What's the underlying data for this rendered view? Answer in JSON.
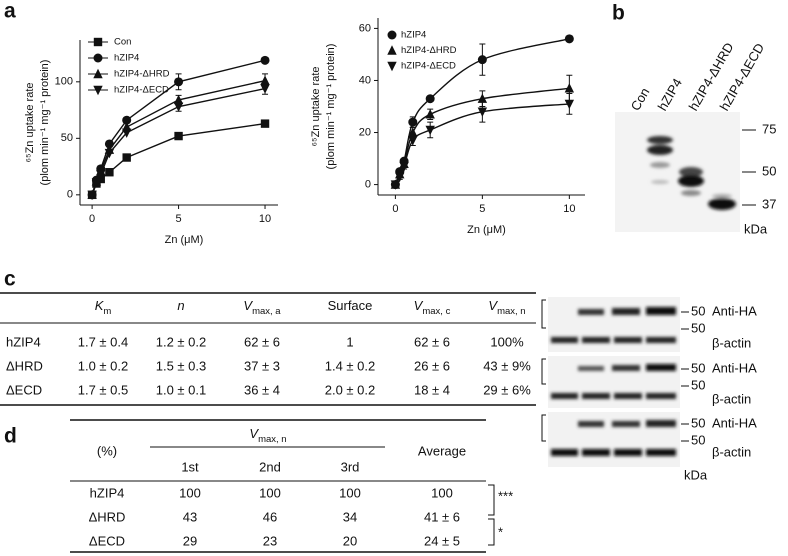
{
  "panel_labels": [
    "a",
    "b",
    "c",
    "d"
  ],
  "chart_data": [
    {
      "type": "line",
      "curve": "linear",
      "legend": "upper left",
      "xlabel": "Zn (μM)",
      "ylabel": [
        "⁶⁵Zn uptake rate",
        "(plom min⁻¹ mg⁻¹ protein)"
      ],
      "x": [
        0,
        0.25,
        0.5,
        1,
        2,
        5,
        10
      ],
      "xlim": [
        -0.7,
        10.75
      ],
      "xticks": [
        0,
        5,
        10
      ],
      "ylim": [
        -9,
        137
      ],
      "yticks": [
        0,
        50,
        100
      ],
      "series": [
        {
          "name": "Con",
          "color": "#111111",
          "marker": "square",
          "values": [
            0,
            10,
            14,
            20,
            33,
            52,
            63
          ],
          "errors": [
            null,
            null,
            null,
            null,
            null,
            null,
            null
          ]
        },
        {
          "name": "hZIP4",
          "color": "#111111",
          "marker": "circle",
          "values": [
            0,
            13,
            23,
            45,
            66,
            100,
            119
          ],
          "errors": [
            null,
            null,
            null,
            null,
            null,
            7,
            null
          ]
        },
        {
          "name": "hZIP4-ΔHRD",
          "color": "#111111",
          "marker": "triangle-up",
          "values": [
            0,
            12,
            21,
            40,
            60,
            84,
            101
          ],
          "errors": [
            null,
            null,
            null,
            null,
            null,
            4,
            6
          ]
        },
        {
          "name": "hZIP4-ΔECD",
          "color": "#111111",
          "marker": "triangle-down",
          "values": [
            0,
            11,
            18,
            37,
            55,
            78,
            94
          ],
          "errors": [
            null,
            null,
            null,
            null,
            null,
            4,
            5
          ]
        }
      ]
    },
    {
      "type": "line",
      "curve": "smooth",
      "legend": "upper left",
      "xlabel": "Zn (μM)",
      "ylabel": [
        "⁶⁵Zn uptake rate",
        "(plom min⁻¹ mg⁻¹ protein)"
      ],
      "x": [
        0,
        0.25,
        0.5,
        1,
        2,
        5,
        10
      ],
      "xlim": [
        -1,
        10.9
      ],
      "xticks": [
        0,
        5,
        10
      ],
      "ylim": [
        -4,
        64
      ],
      "yticks": [
        0,
        20,
        40,
        60
      ],
      "series": [
        {
          "name": "hZIP4",
          "color": "#111111",
          "marker": "circle",
          "values": [
            0,
            5,
            9,
            24,
            33,
            48,
            56
          ],
          "errors": [
            null,
            null,
            null,
            2,
            null,
            6,
            null
          ]
        },
        {
          "name": "hZIP4-ΔHRD",
          "color": "#111111",
          "marker": "triangle-up",
          "values": [
            0,
            4,
            8,
            20,
            27,
            33,
            37
          ],
          "errors": [
            null,
            null,
            1,
            2,
            2,
            3,
            5
          ]
        },
        {
          "name": "hZIP4-ΔECD",
          "color": "#111111",
          "marker": "triangle-down",
          "values": [
            0,
            3,
            7,
            17,
            21,
            28,
            31
          ],
          "errors": [
            null,
            1,
            1,
            2,
            3,
            4,
            4
          ]
        }
      ]
    }
  ],
  "blot_b": {
    "lanes": [
      "Con",
      "hZIP4",
      "hZIP4-ΔHRD",
      "hZIP4-ΔECD"
    ],
    "markers": [
      75,
      50,
      37
    ],
    "unit": "kDa"
  },
  "table_c": {
    "columns": [
      {
        "main": "K",
        "sub": "m"
      },
      {
        "main": "n"
      },
      {
        "main": "V",
        "sub": "max, a"
      },
      {
        "main": "Surface"
      },
      {
        "main": "V",
        "sub": "max, c"
      },
      {
        "main": "V",
        "sub": "max, n"
      }
    ],
    "rows": [
      [
        "hZIP4",
        "1.7 ± 0.4",
        "1.2 ± 0.2",
        "62 ± 6",
        "1",
        "62 ± 6",
        "100%"
      ],
      [
        "ΔHRD",
        "1.0 ± 0.2",
        "1.5 ± 0.3",
        "37 ± 3",
        "1.4 ± 0.2",
        "26 ± 6",
        "43 ± 9%"
      ],
      [
        "ΔECD",
        "1.7 ± 0.5",
        "1.0 ± 0.1",
        "36 ± 4",
        "2.0 ± 0.2",
        "18 ± 4",
        "29 ± 6%"
      ]
    ]
  },
  "blot_c": {
    "groups": [
      [
        {
          "size": 50,
          "label": "Anti-HA"
        },
        {
          "size": 50,
          "label": "β-actin"
        }
      ],
      [
        {
          "size": 50,
          "label": "Anti-HA"
        },
        {
          "size": 50,
          "label": "β-actin"
        }
      ],
      [
        {
          "size": 50,
          "label": "Anti-HA"
        },
        {
          "size": 50,
          "label": "β-actin"
        }
      ]
    ],
    "unit": "kDa"
  },
  "table_d": {
    "corner": "(%)",
    "group": {
      "main": "V",
      "sub": "max, n"
    },
    "columns": [
      "1st",
      "2nd",
      "3rd"
    ],
    "average": "Average",
    "rows": [
      [
        "hZIP4",
        100,
        100,
        100,
        100
      ],
      [
        "ΔHRD",
        43,
        46,
        34,
        "41 ± 6"
      ],
      [
        "ΔECD",
        29,
        23,
        20,
        "24 ± 5"
      ]
    ],
    "significance": [
      "***",
      "*"
    ]
  }
}
